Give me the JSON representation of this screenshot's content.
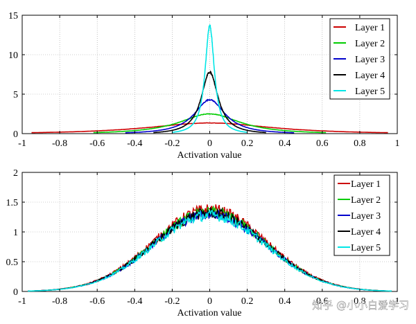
{
  "chart_data": [
    {
      "type": "line",
      "xlabel": "Activation value",
      "ylabel": "",
      "xlim": [
        -1,
        1
      ],
      "ylim": [
        0,
        15
      ],
      "grid": true,
      "legend_position": "top-right",
      "x_ticks": [
        "-1",
        "-0.8",
        "-0.6",
        "-0.4",
        "-0.2",
        "0",
        "0.2",
        "0.4",
        "0.6",
        "0.8",
        "1"
      ],
      "y_ticks": [
        "0",
        "5",
        "10",
        "15"
      ],
      "series": [
        {
          "name": "Layer 1",
          "color": "#cc0000",
          "peak": 1.35,
          "width": 0.42,
          "range": 0.95
        },
        {
          "name": "Layer 2",
          "color": "#00cc00",
          "peak": 2.5,
          "width": 0.2,
          "range": 0.62
        },
        {
          "name": "Layer 3",
          "color": "#0000cc",
          "peak": 4.3,
          "width": 0.1,
          "range": 0.45
        },
        {
          "name": "Layer 4",
          "color": "#000000",
          "peak": 7.8,
          "width": 0.055,
          "range": 0.3
        },
        {
          "name": "Layer 5",
          "color": "#00e6e6",
          "peak": 13.7,
          "width": 0.03,
          "range": 0.2
        }
      ]
    },
    {
      "type": "line",
      "xlabel": "Activation value",
      "ylabel": "",
      "xlim": [
        -1,
        1
      ],
      "ylim": [
        0,
        2
      ],
      "grid": true,
      "legend_position": "top-right",
      "x_ticks": [
        "-1",
        "-0.8",
        "-0.6",
        "-0.4",
        "-0.2",
        "0",
        "0.2",
        "0.4",
        "0.6",
        "0.8",
        "1"
      ],
      "y_ticks": [
        "0",
        "0.5",
        "1",
        "1.5",
        "2"
      ],
      "series": [
        {
          "name": "Layer 1",
          "color": "#cc0000",
          "peak": 1.38,
          "width": 0.3,
          "range": 0.97
        },
        {
          "name": "Layer 2",
          "color": "#00cc00",
          "peak": 1.33,
          "width": 0.3,
          "range": 0.97
        },
        {
          "name": "Layer 3",
          "color": "#0000cc",
          "peak": 1.3,
          "width": 0.3,
          "range": 0.97
        },
        {
          "name": "Layer 4",
          "color": "#000000",
          "peak": 1.32,
          "width": 0.3,
          "range": 0.97
        },
        {
          "name": "Layer 5",
          "color": "#00e6e6",
          "peak": 1.28,
          "width": 0.3,
          "range": 0.97
        }
      ]
    }
  ],
  "watermark": "知乎 @小小白爱学习"
}
